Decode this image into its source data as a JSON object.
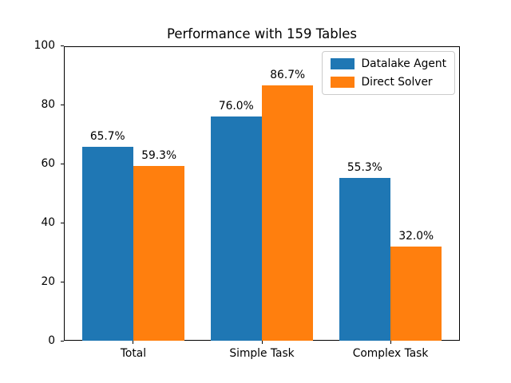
{
  "chart_data": {
    "type": "bar",
    "title": "Performance with 159 Tables",
    "categories": [
      "Total",
      "Simple Task",
      "Complex Task"
    ],
    "series": [
      {
        "name": "Datalake Agent",
        "color": "#1f77b4",
        "values": [
          65.7,
          76.0,
          55.3
        ],
        "labels": [
          "65.7%",
          "76.0%",
          "55.3%"
        ]
      },
      {
        "name": "Direct Solver",
        "color": "#ff7f0e",
        "values": [
          59.3,
          86.7,
          32.0
        ],
        "labels": [
          "59.3%",
          "86.7%",
          "32.0%"
        ]
      }
    ],
    "xlabel": "",
    "ylabel": "",
    "ylim": [
      0,
      100
    ],
    "yticks": [
      0,
      20,
      40,
      60,
      80,
      100
    ],
    "grid": false,
    "legend_position": "upper right",
    "bar_group_width": 0.8,
    "axis_color": "#000000",
    "background_color": "#ffffff"
  }
}
